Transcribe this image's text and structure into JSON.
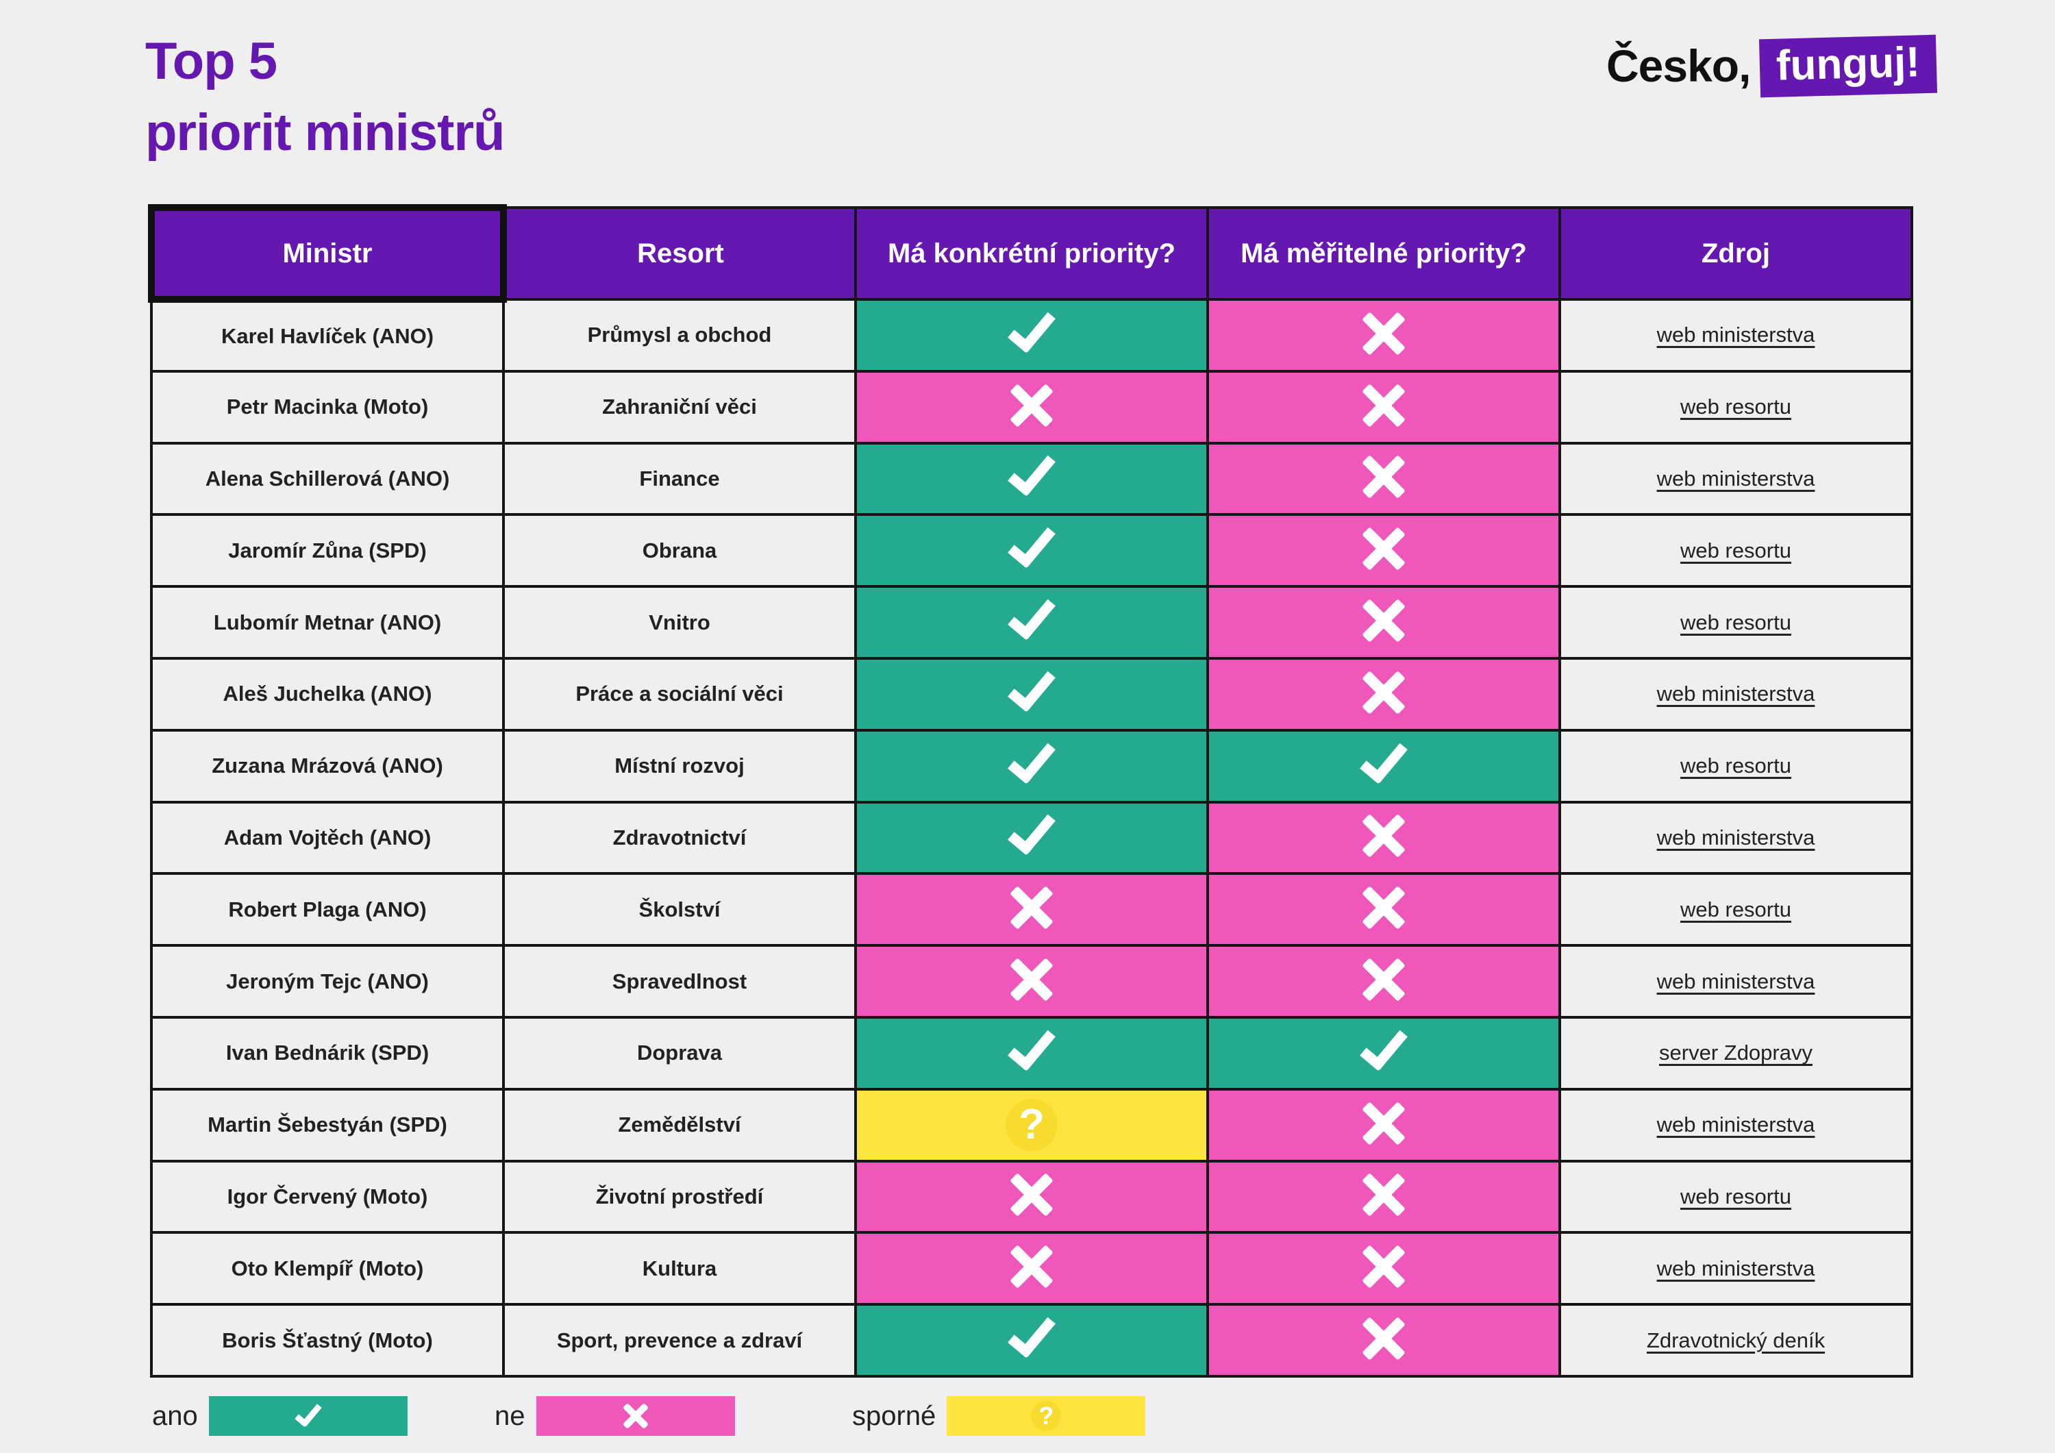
{
  "title": {
    "line1": "Top 5",
    "line2": "priorit ministrů"
  },
  "logo": {
    "part1": "Česko,",
    "part2": "funguj!"
  },
  "colors": {
    "brand": "#6418b0",
    "ano": "#24ab8f",
    "ne": "#ef57bb",
    "sporne": "#fde43f"
  },
  "table": {
    "headers": [
      "Ministr",
      "Resort",
      "Má konkrétní priority?",
      "Má měřitelné priority?",
      "Zdroj"
    ],
    "rows": [
      {
        "minister": "Karel Havlíček (ANO)",
        "resort": "Průmysl a obchod",
        "concrete": "ano",
        "measurable": "ne",
        "source": "web ministerstva"
      },
      {
        "minister": "Petr Macinka (Moto)",
        "resort": "Zahraniční věci",
        "concrete": "ne",
        "measurable": "ne",
        "source": "web resortu"
      },
      {
        "minister": "Alena Schillerová (ANO)",
        "resort": "Finance",
        "concrete": "ano",
        "measurable": "ne",
        "source": "web ministerstva"
      },
      {
        "minister": "Jaromír Zůna (SPD)",
        "resort": "Obrana",
        "concrete": "ano",
        "measurable": "ne",
        "source": "web resortu"
      },
      {
        "minister": "Lubomír Metnar (ANO)",
        "resort": "Vnitro",
        "concrete": "ano",
        "measurable": "ne",
        "source": "web resortu"
      },
      {
        "minister": "Aleš Juchelka (ANO)",
        "resort": "Práce a sociální věci",
        "concrete": "ano",
        "measurable": "ne",
        "source": "web ministerstva"
      },
      {
        "minister": "Zuzana Mrázová (ANO)",
        "resort": "Místní rozvoj",
        "concrete": "ano",
        "measurable": "ano",
        "source": "web resortu"
      },
      {
        "minister": "Adam Vojtěch (ANO)",
        "resort": "Zdravotnictví",
        "concrete": "ano",
        "measurable": "ne",
        "source": "web ministerstva"
      },
      {
        "minister": "Robert Plaga (ANO)",
        "resort": "Školství",
        "concrete": "ne",
        "measurable": "ne",
        "source": "web resortu"
      },
      {
        "minister": "Jeroným Tejc (ANO)",
        "resort": "Spravedlnost",
        "concrete": "ne",
        "measurable": "ne",
        "source": "web ministerstva"
      },
      {
        "minister": "Ivan Bednárik (SPD)",
        "resort": "Doprava",
        "concrete": "ano",
        "measurable": "ano",
        "source": "server Zdopravy"
      },
      {
        "minister": "Martin Šebestyán (SPD)",
        "resort": "Zemědělství",
        "concrete": "sporne",
        "measurable": "ne",
        "source": "web ministerstva"
      },
      {
        "minister": "Igor Červený (Moto)",
        "resort": "Životní prostředí",
        "concrete": "ne",
        "measurable": "ne",
        "source": "web resortu"
      },
      {
        "minister": "Oto Klempíř (Moto)",
        "resort": "Kultura",
        "concrete": "ne",
        "measurable": "ne",
        "source": "web ministerstva"
      },
      {
        "minister": "Boris Šťastný (Moto)",
        "resort": "Sport, prevence a zdraví",
        "concrete": "ano",
        "measurable": "ne",
        "source": "Zdravotnický deník"
      }
    ]
  },
  "legend": [
    {
      "label": "ano",
      "value": "ano"
    },
    {
      "label": "ne",
      "value": "ne"
    },
    {
      "label": "sporné",
      "value": "sporne"
    }
  ]
}
